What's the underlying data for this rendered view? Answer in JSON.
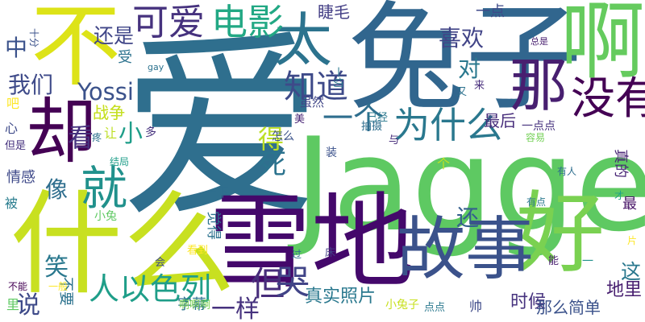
{
  "word_cloud": {
    "words": [
      {
        "text": "爱",
        "color": "#2f6f8e"
      },
      {
        "text": "Jagger",
        "color": "#5ec962"
      },
      {
        "text": "兔子",
        "color": "#31668e"
      },
      {
        "text": "雪地",
        "color": "#44086b"
      },
      {
        "text": "什么",
        "color": "#c8e020"
      },
      {
        "text": "不",
        "color": "#dde318"
      },
      {
        "text": "啊",
        "color": "#65cb5e"
      },
      {
        "text": "好",
        "color": "#7ad151"
      },
      {
        "text": "故事",
        "color": "#3b528b"
      },
      {
        "text": "那",
        "color": "#481f70"
      },
      {
        "text": "却",
        "color": "#440154"
      },
      {
        "text": "太",
        "color": "#2c738e"
      },
      {
        "text": "就",
        "color": "#21918c"
      },
      {
        "text": "没有",
        "color": "#440154"
      },
      {
        "text": "可爱",
        "color": "#46327e"
      },
      {
        "text": "电影",
        "color": "#22a884"
      },
      {
        "text": "为什么",
        "color": "#2a788e"
      },
      {
        "text": "知道",
        "color": "#3e4a89"
      },
      {
        "text": "但",
        "color": "#472d7b"
      },
      {
        "text": "哭",
        "color": "#414487"
      },
      {
        "text": "人以色列",
        "color": "#1f9e89"
      },
      {
        "text": "一个",
        "color": "#2e6e8e"
      },
      {
        "text": "Yossi",
        "color": "#3b528b"
      },
      {
        "text": "我们",
        "color": "#3e4a89"
      },
      {
        "text": "看",
        "color": "#46327e"
      },
      {
        "text": "喜欢",
        "color": "#414487"
      },
      {
        "text": "死",
        "color": "#2c738e"
      },
      {
        "text": "得",
        "color": "#bddf26"
      },
      {
        "text": "对",
        "color": "#2a788e"
      },
      {
        "text": "像",
        "color": "#2e6e8e"
      },
      {
        "text": "小",
        "color": "#1f9e89"
      },
      {
        "text": "中",
        "color": "#3b528b"
      },
      {
        "text": "还是",
        "color": "#404688"
      },
      {
        "text": "睫毛",
        "color": "#433e85"
      },
      {
        "text": "一点",
        "color": "#3e4a89"
      },
      {
        "text": "最后",
        "color": "#472d7b"
      },
      {
        "text": "说",
        "color": "#3e4a89"
      },
      {
        "text": "笑",
        "color": "#2a788e"
      },
      {
        "text": "这",
        "color": "#2a788e"
      },
      {
        "text": "一样",
        "color": "#46327e"
      },
      {
        "text": "还",
        "color": "#355f8d"
      },
      {
        "text": "地里",
        "color": "#481f70"
      },
      {
        "text": "真实照片",
        "color": "#2a788e"
      },
      {
        "text": "时候",
        "color": "#46327e"
      },
      {
        "text": "那么简单",
        "color": "#3b528b"
      },
      {
        "text": "字幕",
        "color": "#2c738e"
      },
      {
        "text": "不要",
        "color": "#2c728e"
      },
      {
        "text": "战争",
        "color": "#fde725"
      },
      {
        "text": "战争",
        "color": "#c2df23"
      },
      {
        "text": "真的",
        "color": "#482475"
      },
      {
        "text": "最",
        "color": "#481467"
      },
      {
        "text": "情感",
        "color": "#3e4989"
      },
      {
        "text": "虽然",
        "color": "#404688"
      },
      {
        "text": "一下",
        "color": "#2e6e8e"
      },
      {
        "text": "觉得",
        "color": "#2c728e"
      },
      {
        "text": "被",
        "color": "#287c8e"
      },
      {
        "text": "心",
        "color": "#3e4a89"
      },
      {
        "text": "小兔",
        "color": "#5ec962"
      },
      {
        "text": "小兔子",
        "color": "#c8e020"
      },
      {
        "text": "帅",
        "color": "#3e4a89"
      },
      {
        "text": "受",
        "color": "#2c728e"
      },
      {
        "text": "多",
        "color": "#46327e"
      },
      {
        "text": "让",
        "color": "#bddf26"
      },
      {
        "text": "美",
        "color": "#482475"
      },
      {
        "text": "已经",
        "color": "#2a788e"
      },
      {
        "text": "拍摄",
        "color": "#2e6e8e"
      },
      {
        "text": "与",
        "color": "#472d7b"
      },
      {
        "text": "容易",
        "color": "#73d056"
      },
      {
        "text": "一点点",
        "color": "#46327e"
      },
      {
        "text": "又",
        "color": "#2c728e"
      },
      {
        "text": "来",
        "color": "#472d7b"
      },
      {
        "text": "总是",
        "color": "#481f70"
      },
      {
        "text": "一切",
        "color": "#2a788e"
      },
      {
        "text": "十分",
        "color": "#3b528b"
      },
      {
        "text": "吧",
        "color": "#fde725"
      },
      {
        "text": "但是",
        "color": "#46327e"
      },
      {
        "text": "疼",
        "color": "#2c728e"
      },
      {
        "text": "结局",
        "color": "#1f9e89"
      },
      {
        "text": "怎么",
        "color": "#3b528b"
      },
      {
        "text": "装",
        "color": "#3b528b"
      },
      {
        "text": "个",
        "color": "#c2df23"
      },
      {
        "text": "有人",
        "color": "#2e6e8e"
      },
      {
        "text": "才",
        "color": "#20a386"
      },
      {
        "text": "有点",
        "color": "#2a788e"
      },
      {
        "text": "片",
        "color": "#fde725"
      },
      {
        "text": "能",
        "color": "#481f70"
      },
      {
        "text": "床",
        "color": "#433e85"
      },
      {
        "text": "会",
        "color": "#3e4a89"
      },
      {
        "text": "看到",
        "color": "#fde725"
      },
      {
        "text": "过",
        "color": "#2e6e8e"
      },
      {
        "text": "一般",
        "color": "#fde725"
      },
      {
        "text": "不能",
        "color": "#440154"
      },
      {
        "text": "里",
        "color": "#5ec962"
      },
      {
        "text": "啊啊啊",
        "color": "#7ad151"
      },
      {
        "text": "点点",
        "color": "#2a788e"
      },
      {
        "text": "gay",
        "color": "#2c728e"
      },
      {
        "text": "一",
        "color": "#21918c"
      }
    ]
  }
}
